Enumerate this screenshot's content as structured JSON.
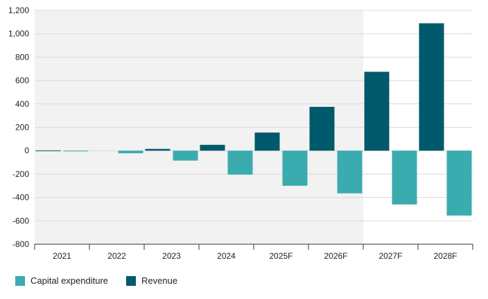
{
  "chart_data": {
    "type": "bar",
    "categories": [
      "2021",
      "2022",
      "2023",
      "2024",
      "2025F",
      "2026F",
      "2027F",
      "2028F"
    ],
    "series": [
      {
        "name": "Revenue",
        "color": "#005a6b",
        "values": [
          2,
          0,
          15,
          50,
          155,
          375,
          675,
          1090
        ]
      },
      {
        "name": "Capital expenditure",
        "color": "#3aabaf",
        "values": [
          -3,
          -22,
          -85,
          -205,
          -300,
          -365,
          -460,
          -555
        ]
      }
    ],
    "ylim": [
      -800,
      1200
    ],
    "yticks": [
      -800,
      -600,
      -400,
      -200,
      0,
      200,
      400,
      600,
      800,
      1000,
      1200
    ],
    "ytick_labels": [
      "-800",
      "-600",
      "-400",
      "-200",
      "0",
      "200",
      "400",
      "600",
      "800",
      "1,000",
      "1,200"
    ],
    "grid": true,
    "shaded_region_categories": [
      "2021",
      "2022",
      "2023",
      "2024",
      "2025F",
      "2026F"
    ],
    "shaded_color": "#f2f2f2",
    "legend_position": "bottom-left"
  },
  "legend": {
    "items": [
      {
        "label": "Capital expenditure",
        "color": "#3aabaf"
      },
      {
        "label": "Revenue",
        "color": "#005a6b"
      }
    ]
  }
}
